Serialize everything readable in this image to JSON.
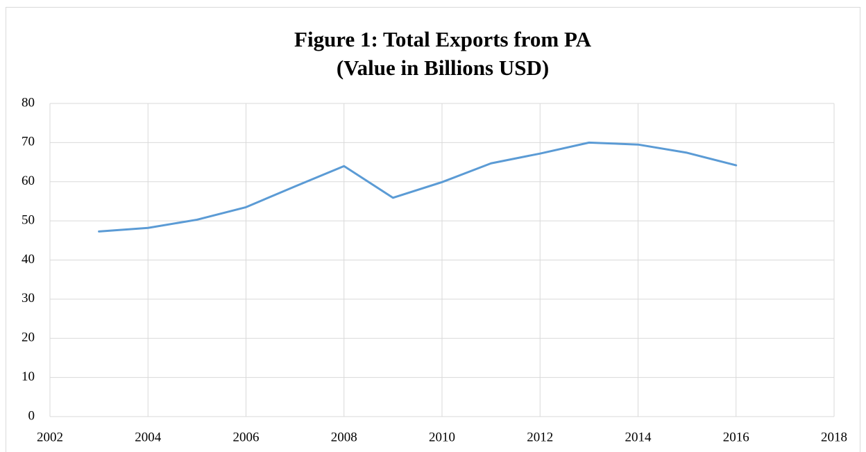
{
  "chart_data": {
    "type": "line",
    "title": [
      "Figure 1: Total Exports from PA",
      "(Value in Billions USD)"
    ],
    "x": [
      2003,
      2004,
      2005,
      2006,
      2007,
      2008,
      2009,
      2010,
      2011,
      2012,
      2013,
      2014,
      2015,
      2016
    ],
    "series": [
      {
        "name": "Total Exports",
        "color": "#5b9bd5",
        "values": [
          47.3,
          48.2,
          50.3,
          53.5,
          58.8,
          64.0,
          55.9,
          59.9,
          64.7,
          67.2,
          70.0,
          69.5,
          67.4,
          64.2
        ]
      }
    ],
    "xlim": [
      2002,
      2018
    ],
    "xticks": [
      2002,
      2004,
      2006,
      2008,
      2010,
      2012,
      2014,
      2016,
      2018
    ],
    "ylim": [
      0,
      80
    ],
    "yticks": [
      0,
      10,
      20,
      30,
      40,
      50,
      60,
      70,
      80
    ],
    "grid": true
  }
}
